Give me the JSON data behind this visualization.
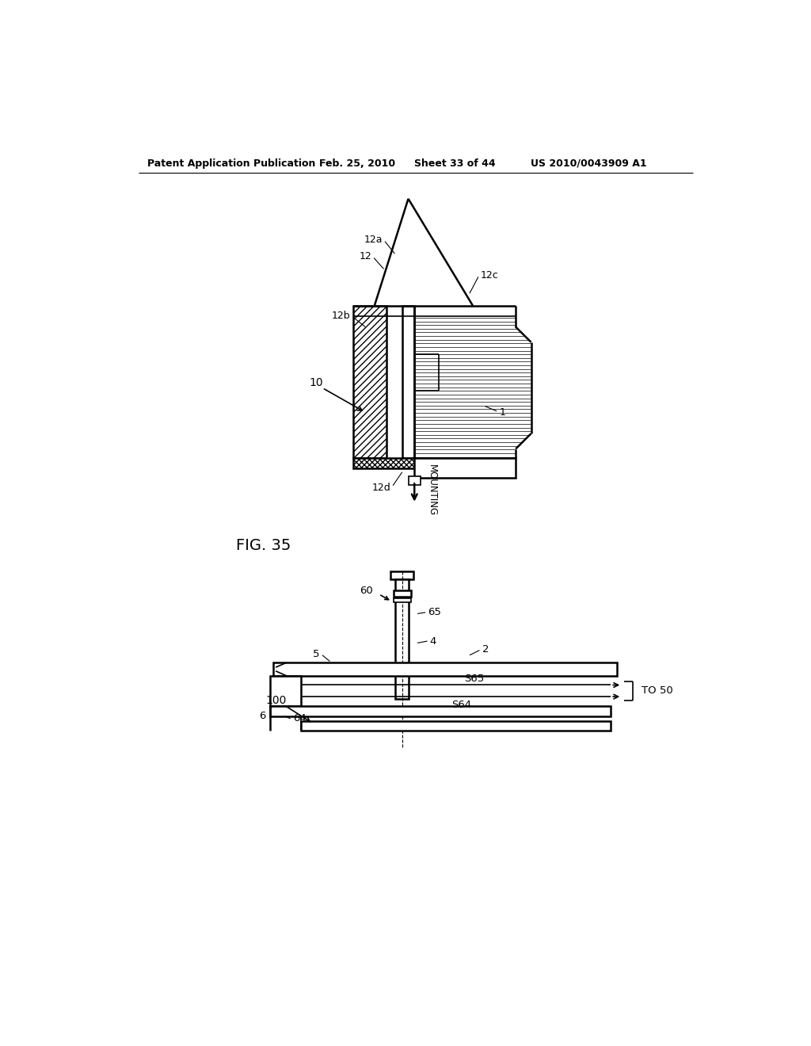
{
  "background_color": "#ffffff",
  "header_text": "Patent Application Publication",
  "header_date": "Feb. 25, 2010",
  "header_sheet": "Sheet 33 of 44",
  "header_patent": "US 2010/0043909 A1",
  "fig_label": "FIG. 35",
  "top_diagram": {
    "label_10": "10",
    "label_1": "1",
    "label_12": "12",
    "label_12a": "12a",
    "label_12b": "12b",
    "label_12c": "12c",
    "label_12d": "12d",
    "label_mounting": "MOUNTING"
  },
  "bottom_diagram": {
    "label_100": "100",
    "label_60": "60",
    "label_65": "65",
    "label_4": "4",
    "label_5": "5",
    "label_2": "2",
    "label_6": "6",
    "label_64": "64",
    "label_S65": "S65",
    "label_S64": "S64",
    "label_TO50": "TO 50"
  }
}
